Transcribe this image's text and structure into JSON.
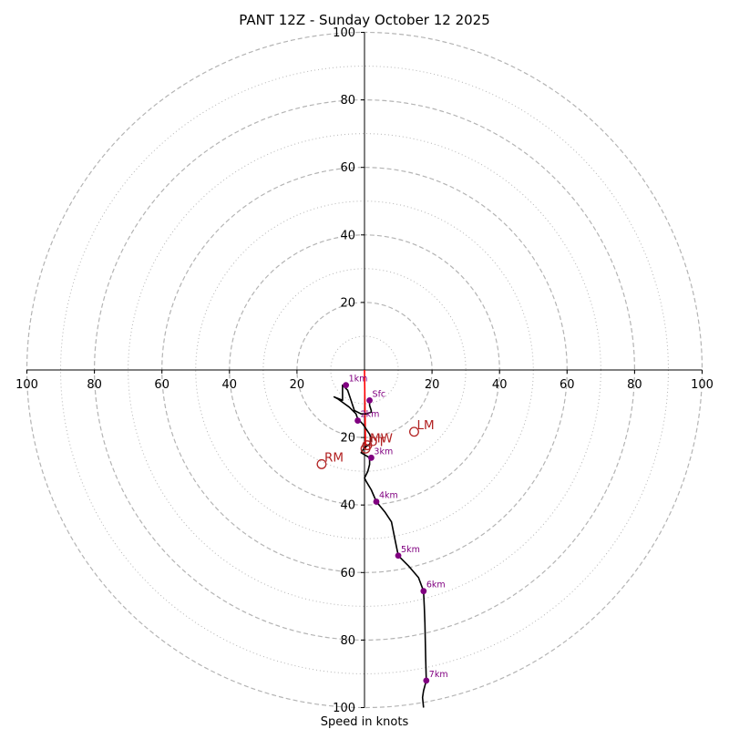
{
  "chart_data": {
    "type": "hodograph",
    "title": "PANT 12Z - Sunday October 12 2025",
    "xlabel": "Speed in knots",
    "range": [
      -100,
      100
    ],
    "ring_major": [
      20,
      40,
      60,
      80,
      100
    ],
    "ring_minor": [
      10,
      30,
      50,
      70,
      90
    ],
    "tick_labels": {
      "x": [
        {
          "v": -100,
          "label": "100"
        },
        {
          "v": -80,
          "label": "80"
        },
        {
          "v": -60,
          "label": "60"
        },
        {
          "v": -40,
          "label": "40"
        },
        {
          "v": -20,
          "label": "20"
        },
        {
          "v": 20,
          "label": "20"
        },
        {
          "v": 40,
          "label": "40"
        },
        {
          "v": 60,
          "label": "60"
        },
        {
          "v": 80,
          "label": "80"
        },
        {
          "v": 100,
          "label": "100"
        }
      ],
      "y": [
        {
          "v": 100,
          "label": "100"
        },
        {
          "v": 80,
          "label": "80"
        },
        {
          "v": 60,
          "label": "60"
        },
        {
          "v": 40,
          "label": "40"
        },
        {
          "v": 20,
          "label": "20"
        },
        {
          "v": -20,
          "label": "20"
        },
        {
          "v": -40,
          "label": "40"
        },
        {
          "v": -60,
          "label": "60"
        },
        {
          "v": -80,
          "label": "80"
        },
        {
          "v": -100,
          "label": "100"
        }
      ]
    },
    "trace": [
      [
        1.5,
        -9
      ],
      [
        1.5,
        -10.5
      ],
      [
        2,
        -12
      ],
      [
        2,
        -12.5
      ],
      [
        0.5,
        -13
      ],
      [
        -1,
        -13
      ],
      [
        -3,
        -12
      ],
      [
        -4,
        -9
      ],
      [
        -5,
        -6
      ],
      [
        -6.5,
        -4.5
      ],
      [
        -6.5,
        -6
      ],
      [
        -6.5,
        -7.5
      ],
      [
        -6.5,
        -9
      ],
      [
        -9,
        -8
      ],
      [
        -8,
        -8.5
      ],
      [
        -4.5,
        -11
      ],
      [
        -2.5,
        -13
      ],
      [
        -2,
        -14.5
      ],
      [
        -0.5,
        -16
      ],
      [
        1.5,
        -19
      ],
      [
        2,
        -20.5
      ],
      [
        1.5,
        -22
      ],
      [
        0,
        -23
      ],
      [
        -1,
        -24.5
      ],
      [
        1.5,
        -26
      ],
      [
        1.5,
        -28
      ],
      [
        1,
        -30
      ],
      [
        0,
        -32
      ],
      [
        0.5,
        -33
      ],
      [
        2,
        -35.5
      ],
      [
        3.5,
        -39
      ],
      [
        6,
        -42
      ],
      [
        8,
        -45
      ],
      [
        9,
        -50
      ],
      [
        10,
        -55
      ],
      [
        13,
        -58
      ],
      [
        16,
        -61.5
      ],
      [
        17.5,
        -65.5
      ],
      [
        17.7,
        -70
      ],
      [
        17.9,
        -75
      ],
      [
        18,
        -80
      ],
      [
        18.1,
        -85
      ],
      [
        18.2,
        -88
      ],
      [
        18.3,
        -92
      ],
      [
        17.5,
        -95
      ],
      [
        17.2,
        -97
      ],
      [
        17.5,
        -100
      ]
    ],
    "height_markers": [
      {
        "label": "Sfc",
        "u": 1.5,
        "v": -9
      },
      {
        "label": "1km",
        "u": -5.5,
        "v": -4.5
      },
      {
        "label": "2km",
        "u": -2,
        "v": -15
      },
      {
        "label": "3km",
        "u": 2,
        "v": -26
      },
      {
        "label": "4km",
        "u": 3.5,
        "v": -39
      },
      {
        "label": "5km",
        "u": 10,
        "v": -55
      },
      {
        "label": "6km",
        "u": 17.5,
        "v": -65.5
      },
      {
        "label": "7km",
        "u": 18.3,
        "v": -92
      }
    ],
    "storm_motions": [
      {
        "label": "RM",
        "u": -12.7,
        "v": -27.9
      },
      {
        "label": "LM",
        "u": 14.7,
        "v": -18.3
      },
      {
        "label": "MW",
        "u": 0.8,
        "v": -22.3
      },
      {
        "label": "DT",
        "u": 0.3,
        "v": -23.3
      }
    ],
    "shear_vector": {
      "from": [
        0,
        0
      ],
      "to": [
        0.3,
        -23.3
      ]
    },
    "colors": {
      "trace": "#000000",
      "marker": "#800080",
      "storm_motion": "#b22222",
      "shear": "#ff0000",
      "grid": "#b4b4b4",
      "axis": "#000000"
    }
  }
}
